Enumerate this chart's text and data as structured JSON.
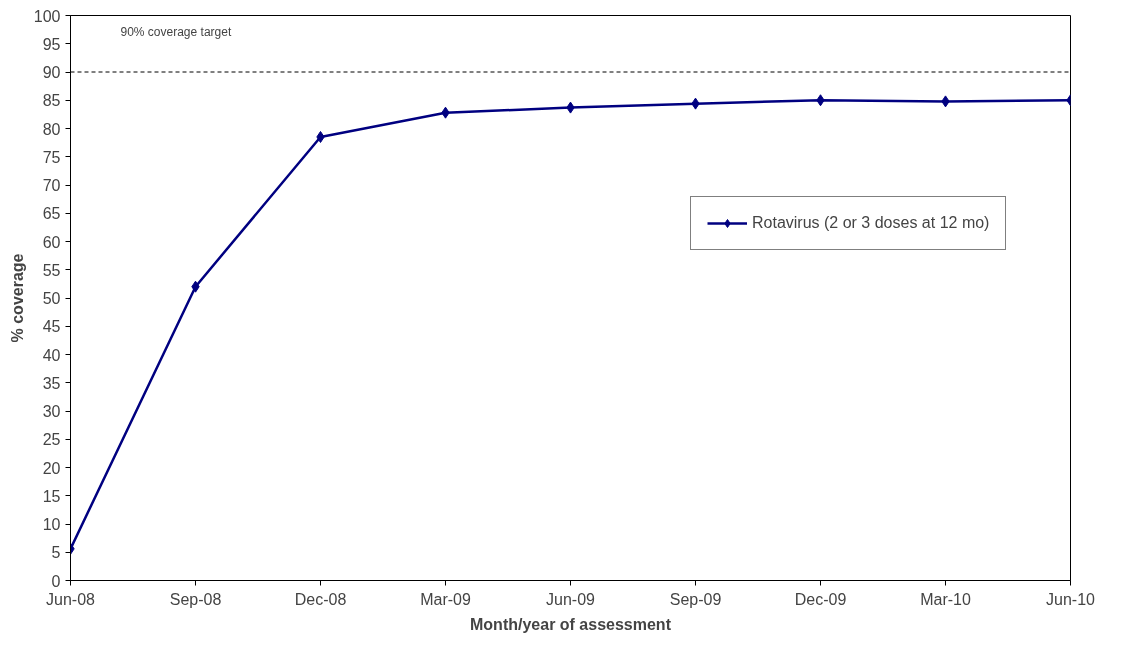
{
  "chart_data": {
    "type": "line",
    "xlabel": "Month/year of assessment",
    "ylabel": "% coverage",
    "categories": [
      "Jun-08",
      "Sep-08",
      "Dec-08",
      "Mar-09",
      "Jun-09",
      "Sep-09",
      "Dec-09",
      "Mar-10",
      "Jun-10"
    ],
    "series": [
      {
        "name": "Rotavirus (2 or 3 doses at 12 mo)",
        "color": "#000080",
        "values": [
          5.6,
          52,
          78.5,
          82.8,
          83.7,
          84.4,
          85.0,
          84.8,
          85.0
        ]
      }
    ],
    "ylim": [
      0,
      100
    ],
    "yticks": [
      0,
      5,
      10,
      15,
      20,
      25,
      30,
      35,
      40,
      45,
      50,
      55,
      60,
      65,
      70,
      75,
      80,
      85,
      90,
      95,
      100
    ],
    "ref_lines": [
      {
        "axis": "y",
        "value": 90,
        "label": "90% coverage target",
        "color": "#000000",
        "line_style": "dashed"
      }
    ],
    "grid": false,
    "legend": "right",
    "marker": "diamond",
    "line_style": "solid"
  }
}
